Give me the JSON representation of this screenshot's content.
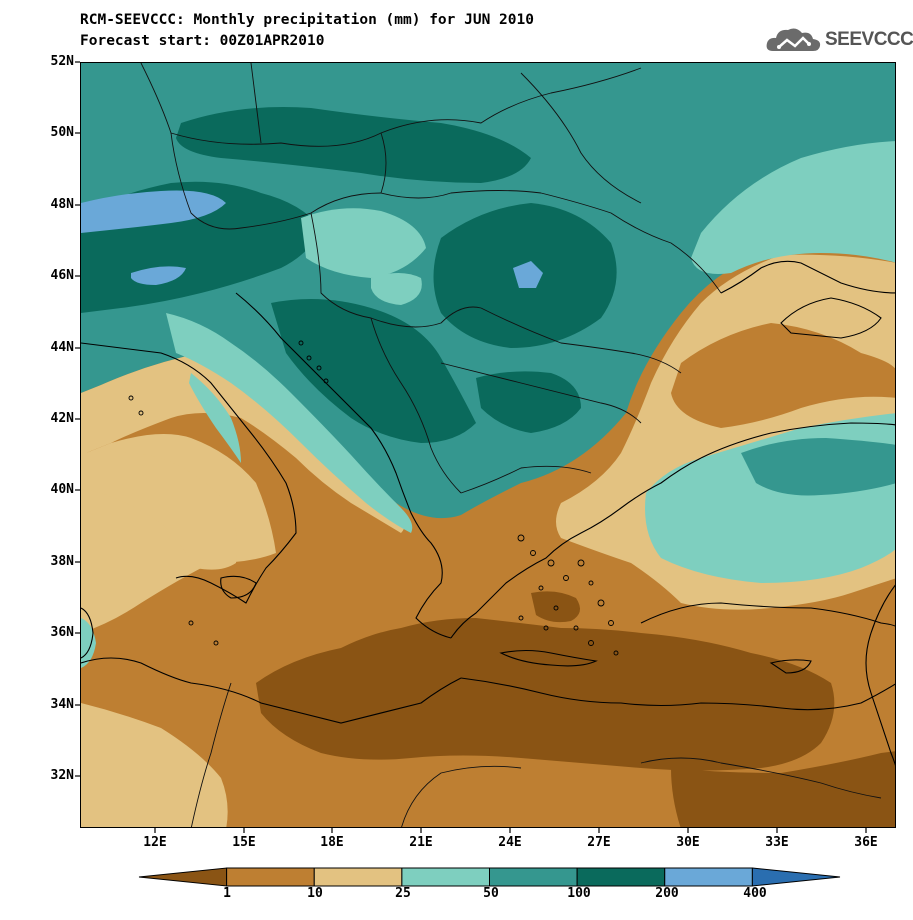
{
  "title": {
    "line1": "RCM-SEEVCCC: Monthly precipitation (mm) for JUN 2010",
    "line2": "Forecast start: 00Z01APR2010"
  },
  "logo": {
    "text": "SEEVCCC",
    "icon": "cloud-icon"
  },
  "axes": {
    "y_ticks": [
      "52N",
      "50N",
      "48N",
      "46N",
      "44N",
      "42N",
      "40N",
      "38N",
      "36N",
      "34N",
      "32N"
    ],
    "x_ticks": [
      "12E",
      "15E",
      "18E",
      "21E",
      "24E",
      "27E",
      "30E",
      "33E",
      "36E"
    ]
  },
  "colorbar": {
    "labels": [
      "1",
      "10",
      "25",
      "50",
      "100",
      "200",
      "400"
    ],
    "colors": [
      "#8a5414",
      "#be7f32",
      "#e3c281",
      "#7ecfbf",
      "#35978f",
      "#0a6a5c",
      "#6aa8d8",
      "#2a6eb0"
    ]
  },
  "colors": {
    "very_dry": "#8a5414",
    "dry": "#be7f32",
    "light": "#e3c281",
    "moderate": "#7ecfbf",
    "wet": "#35978f",
    "very_wet": "#0a6a5c",
    "extreme": "#6aa8d8"
  }
}
